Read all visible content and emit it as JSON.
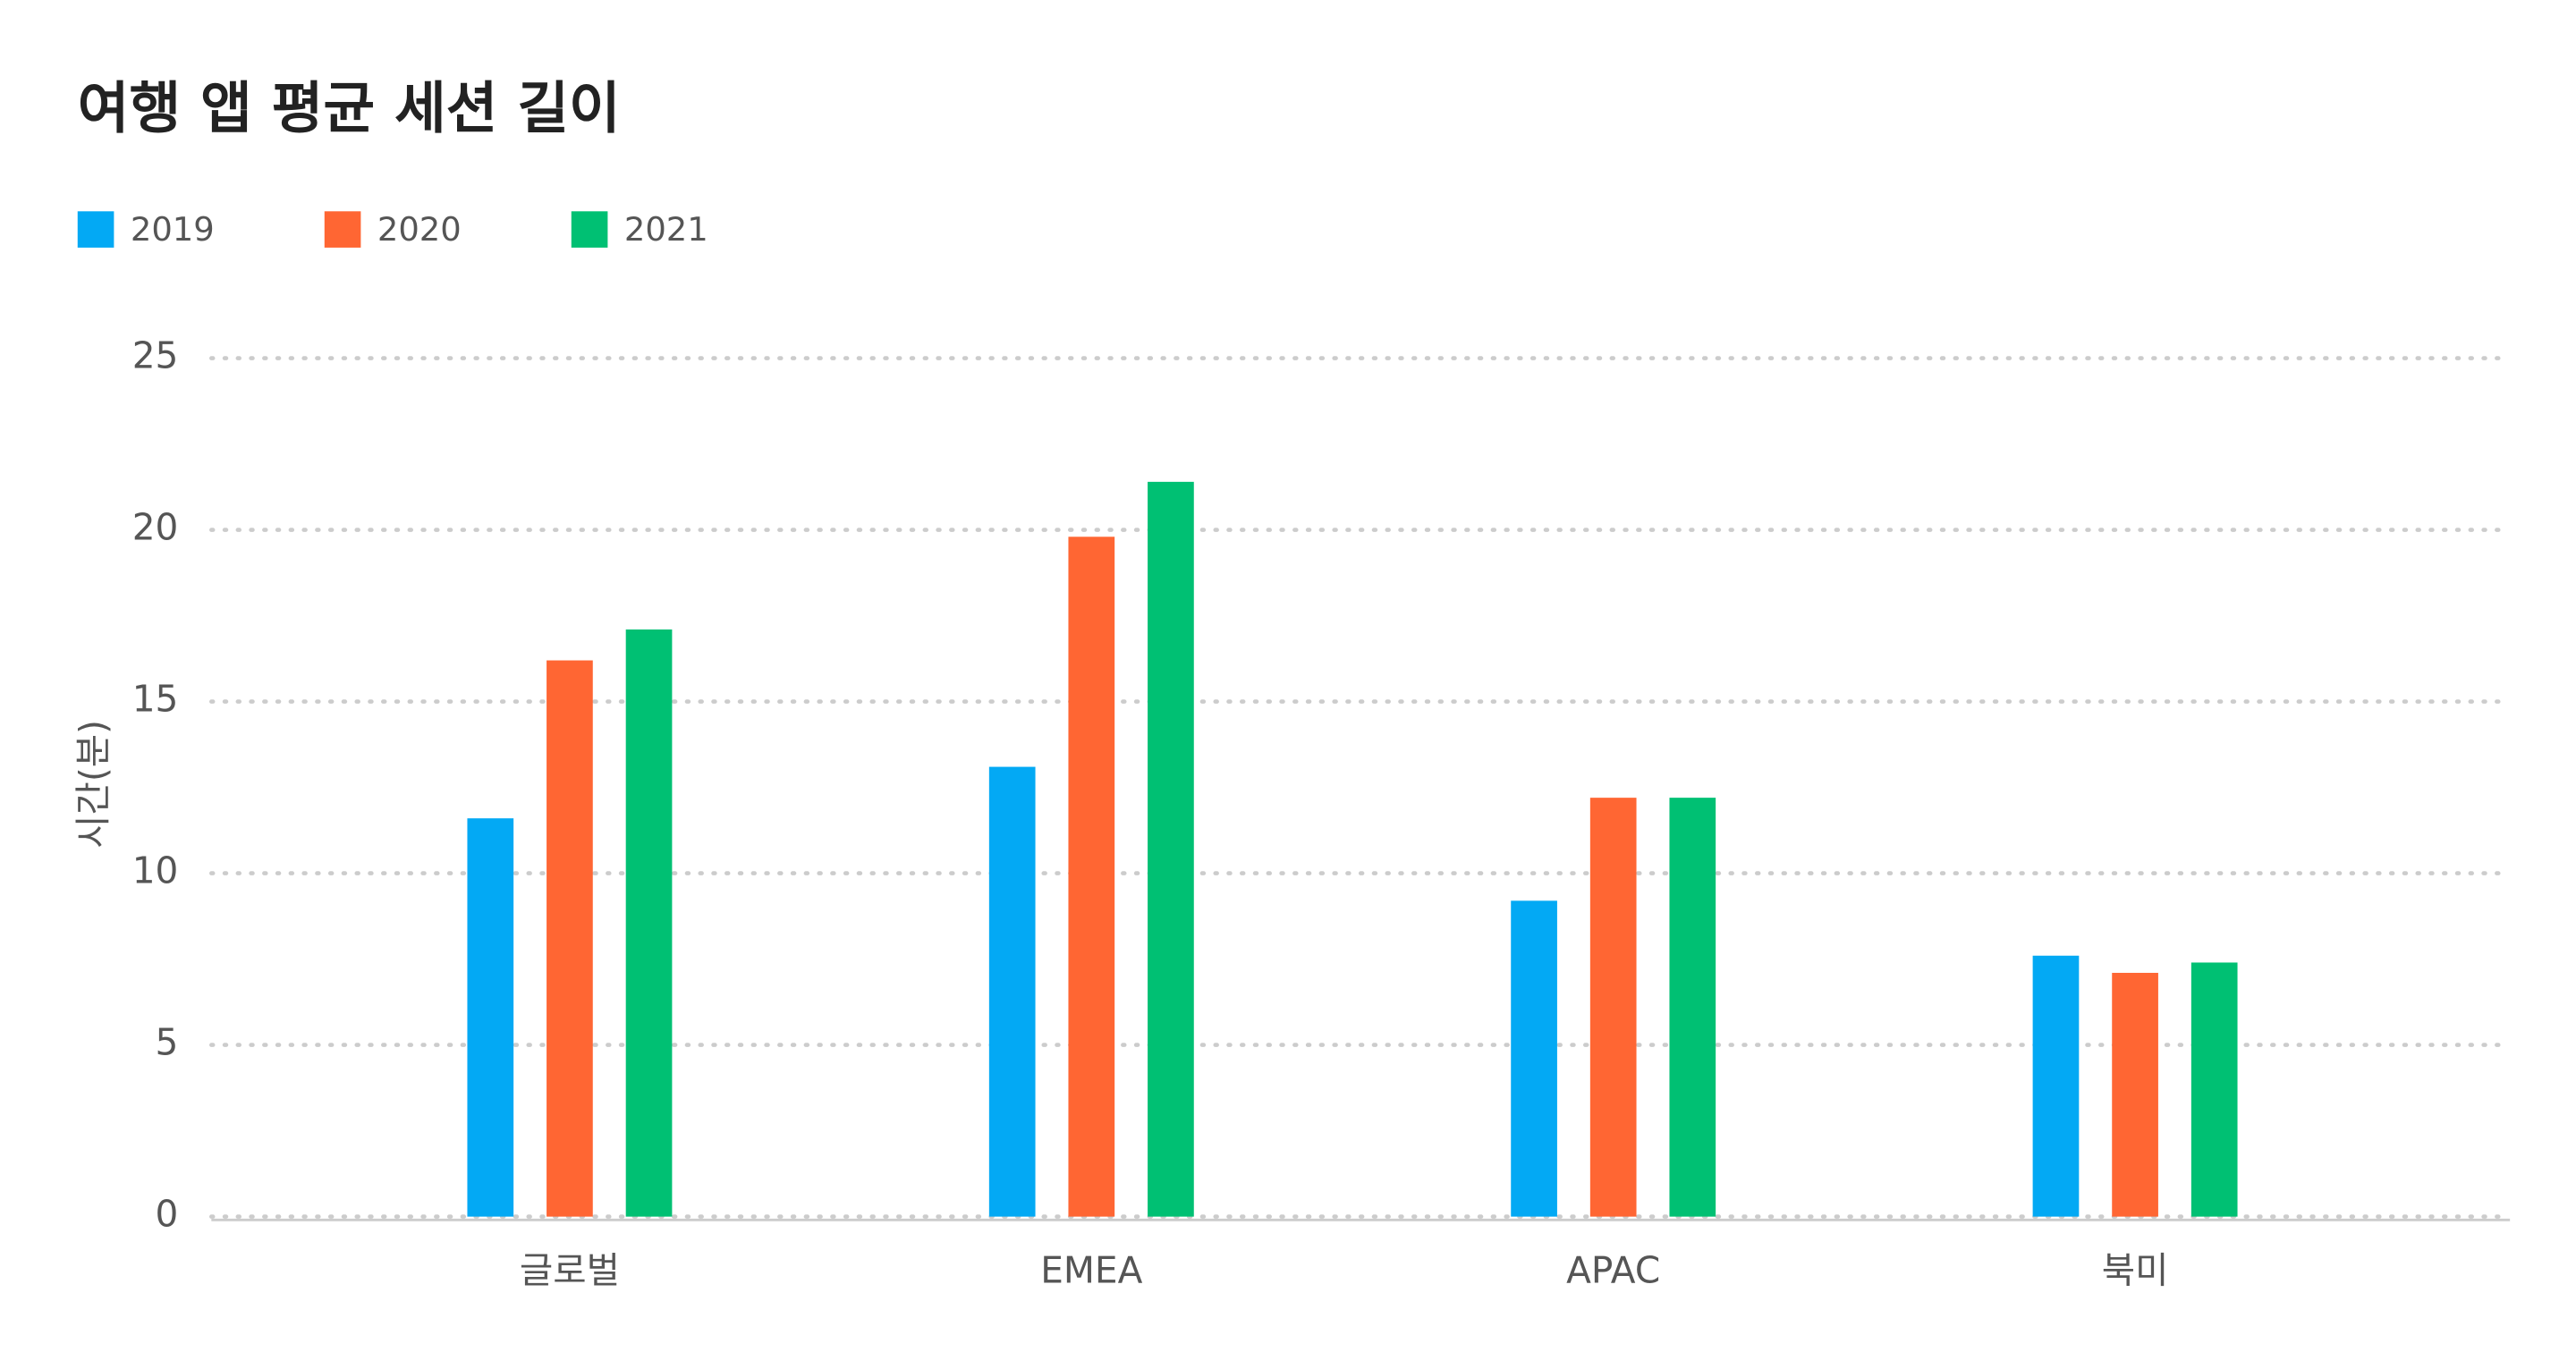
{
  "chart_data": {
    "type": "bar",
    "title": "여행 앱 평균 세션 길이",
    "y_label": "시간(분)",
    "categories": [
      "글로벌",
      "EMEA",
      "APAC",
      "북미"
    ],
    "series": [
      {
        "name": "2019",
        "color": "#03a9f4",
        "values": [
          11.6,
          13.1,
          9.2,
          7.6
        ]
      },
      {
        "name": "2020",
        "color": "#ff6633",
        "values": [
          16.2,
          19.8,
          12.2,
          7.1
        ]
      },
      {
        "name": "2021",
        "color": "#00c073",
        "values": [
          17.1,
          21.4,
          12.2,
          7.4
        ]
      }
    ],
    "ylim": [
      0,
      25
    ],
    "yticks": [
      0,
      5,
      10,
      15,
      20,
      25
    ],
    "grid": true
  }
}
